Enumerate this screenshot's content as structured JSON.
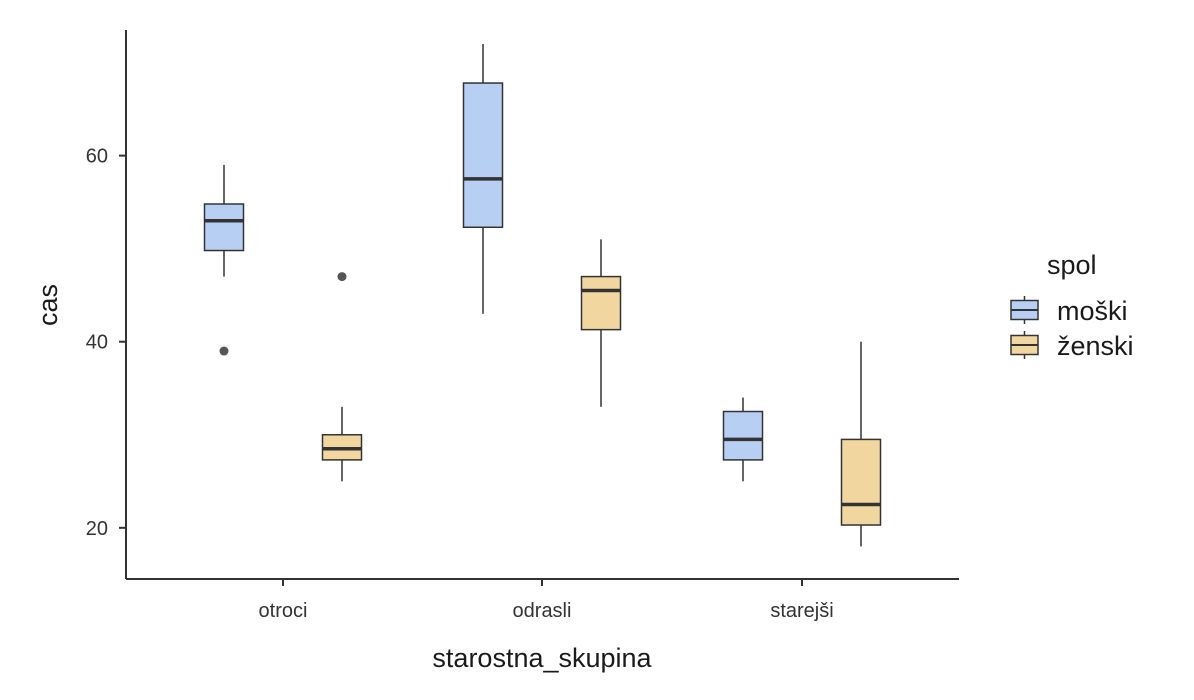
{
  "chart_data": {
    "type": "boxplot",
    "xlabel": "starostna_skupina",
    "ylabel": "cas",
    "categories": [
      "otroci",
      "odrasli",
      "starejši"
    ],
    "ylim": [
      14.5,
      73.5
    ],
    "yticks": [
      20,
      40,
      60
    ],
    "grid": false,
    "legend": {
      "title": "spol",
      "placement": "right"
    },
    "series": [
      {
        "name": "moški",
        "color": "#b8cff4",
        "boxes": [
          {
            "whisker_low": 47,
            "q1": 49.8,
            "median": 53,
            "q3": 54.8,
            "whisker_high": 59,
            "outliers": [
              39
            ]
          },
          {
            "whisker_low": 43,
            "q1": 52.3,
            "median": 57.5,
            "q3": 67.8,
            "whisker_high": 72,
            "outliers": []
          },
          {
            "whisker_low": 25,
            "q1": 27.3,
            "median": 29.5,
            "q3": 32.5,
            "whisker_high": 34,
            "outliers": []
          }
        ]
      },
      {
        "name": "ženski",
        "color": "#f2d6a0",
        "boxes": [
          {
            "whisker_low": 25,
            "q1": 27.3,
            "median": 28.5,
            "q3": 30,
            "whisker_high": 33,
            "outliers": [
              47
            ]
          },
          {
            "whisker_low": 33,
            "q1": 41.3,
            "median": 45.5,
            "q3": 47,
            "whisker_high": 51,
            "outliers": []
          },
          {
            "whisker_low": 18,
            "q1": 20.3,
            "median": 22.5,
            "q3": 29.5,
            "whisker_high": 40,
            "outliers": []
          }
        ]
      }
    ],
    "colors": {
      "axis": "#333333",
      "box_stroke": "#333333",
      "outlier": "#555555"
    }
  }
}
